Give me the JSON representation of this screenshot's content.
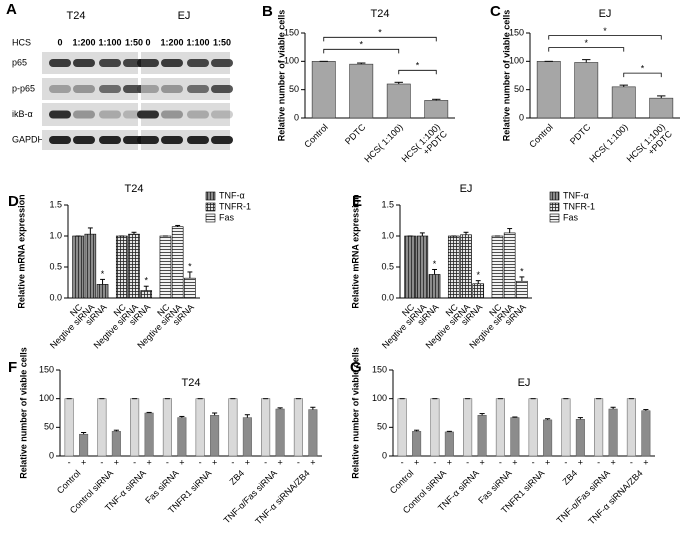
{
  "blot": {
    "label": "A",
    "cell_lines": [
      "T24",
      "EJ"
    ],
    "treatment": "HCS",
    "doses": [
      "0",
      "1:200",
      "1:100",
      "1:50"
    ],
    "proteins": [
      "p65",
      "p-p65",
      "ikB-α",
      "GAPDH"
    ]
  },
  "chart_data": [
    {
      "type": "bar",
      "label": "B",
      "title": "T24",
      "ylabel": "Relative number of viable cells",
      "categories": [
        "Control",
        "PDTC",
        "HCS( 1:100)",
        "HCS( 1:100)\n+PDTC"
      ],
      "values": [
        100,
        95,
        60,
        31
      ],
      "errors": [
        0,
        2,
        3,
        2
      ],
      "color": "#a6a6a6",
      "ylim": [
        0,
        150
      ],
      "yticks": [
        0,
        50,
        100,
        150
      ],
      "annotations": [
        {
          "text": "*",
          "from": "HCS( 1:100)",
          "to": "HCS( 1:100)\n+PDTC"
        },
        {
          "text": "*",
          "from": "Control",
          "to": "HCS( 1:100)"
        },
        {
          "text": "*",
          "from": "Control",
          "to": "HCS( 1:100)\n+PDTC"
        }
      ]
    },
    {
      "type": "bar",
      "label": "C",
      "title": "EJ",
      "ylabel": "Relative number of viable cells",
      "categories": [
        "Control",
        "PDTC",
        "HCS( 1:100)",
        "HCS( 1:100)\n+PDTC"
      ],
      "values": [
        100,
        98,
        55,
        35
      ],
      "errors": [
        0,
        5,
        3,
        4
      ],
      "color": "#a6a6a6",
      "ylim": [
        0,
        150
      ],
      "yticks": [
        0,
        50,
        100,
        150
      ],
      "annotations": [
        {
          "text": "*",
          "from": "HCS( 1:100)",
          "to": "HCS( 1:100)\n+PDTC"
        },
        {
          "text": "*",
          "from": "Control",
          "to": "HCS( 1:100)"
        },
        {
          "text": "*",
          "from": "Control",
          "to": "HCS( 1:100)\n+PDTC"
        }
      ]
    },
    {
      "type": "grouped_bar",
      "label": "D",
      "title": "T24",
      "ylabel": "Relative mRNA expression",
      "categories": [
        "NC",
        "Negtive siRNA",
        "siRNA",
        "NC",
        "Negtive siRNA",
        "siRNA",
        "NC",
        "Negtive siRNA",
        "siRNA"
      ],
      "series": [
        {
          "name": "TNF-α",
          "color": "#8c8c8c",
          "pattern": "vertical",
          "values": [
            1.0,
            1.03,
            0.22,
            null,
            null,
            null,
            null,
            null,
            null
          ],
          "errors": [
            0,
            0.1,
            0.08,
            null,
            null,
            null,
            null,
            null,
            null
          ]
        },
        {
          "name": "TNFR-1",
          "color": "#e6e6e6",
          "pattern": "cross",
          "values": [
            null,
            null,
            null,
            1.0,
            1.03,
            0.12,
            null,
            null,
            null
          ],
          "errors": [
            null,
            null,
            null,
            0,
            0.03,
            0.07,
            null,
            null,
            null
          ]
        },
        {
          "name": "Fas",
          "color": "#f2f2f2",
          "pattern": "horizontal",
          "values": [
            null,
            null,
            null,
            null,
            null,
            null,
            1.0,
            1.15,
            0.32
          ],
          "errors": [
            null,
            null,
            null,
            null,
            null,
            null,
            0,
            0.02,
            0.1
          ]
        }
      ],
      "ylim": [
        0,
        1.5
      ],
      "yticks": [
        {
          "value": 0,
          "label": "0.0"
        },
        0.5,
        {
          "value": 1,
          "label": "1.0"
        },
        1.5
      ],
      "legend": "upper right",
      "annotations": [
        {
          "text": "*",
          "series": "TNF-α",
          "at": "siRNA"
        },
        {
          "text": "*",
          "series": "TNFR-1",
          "at": "siRNA"
        },
        {
          "text": "*",
          "series": "Fas",
          "at": "siRNA"
        }
      ]
    },
    {
      "type": "grouped_bar",
      "label": "E",
      "title": "EJ",
      "ylabel": "Relative mRNA expression",
      "categories": [
        "NC",
        "Negtive siRNA",
        "siRNA",
        "NC",
        "Negtive siRNA",
        "siRNA",
        "NC",
        "Negtive siRNA",
        "siRNA"
      ],
      "series": [
        {
          "name": "TNF-α",
          "color": "#8c8c8c",
          "pattern": "vertical",
          "values": [
            1.0,
            1.0,
            0.38,
            null,
            null,
            null,
            null,
            null,
            null
          ],
          "errors": [
            0,
            0.05,
            0.08,
            null,
            null,
            null,
            null,
            null,
            null
          ]
        },
        {
          "name": "TNFR-1",
          "color": "#e6e6e6",
          "pattern": "cross",
          "values": [
            null,
            null,
            null,
            1.0,
            1.02,
            0.23,
            null,
            null,
            null
          ],
          "errors": [
            null,
            null,
            null,
            0,
            0.04,
            0.05,
            null,
            null,
            null
          ]
        },
        {
          "name": "Fas",
          "color": "#f2f2f2",
          "pattern": "horizontal",
          "values": [
            null,
            null,
            null,
            null,
            null,
            null,
            1.0,
            1.05,
            0.27
          ],
          "errors": [
            null,
            null,
            null,
            null,
            null,
            null,
            0,
            0.07,
            0.07
          ]
        }
      ],
      "ylim": [
        0,
        1.5
      ],
      "yticks": [
        {
          "value": 0,
          "label": "0.0"
        },
        0.5,
        {
          "value": 1,
          "label": "1.0"
        },
        1.5
      ],
      "legend": "upper right",
      "annotations": [
        {
          "text": "*",
          "series": "TNF-α",
          "at": "siRNA"
        },
        {
          "text": "*",
          "series": "TNFR-1",
          "at": "siRNA"
        },
        {
          "text": "*",
          "series": "Fas",
          "at": "siRNA"
        }
      ]
    },
    {
      "type": "paired_bar",
      "label": "F",
      "title": "T24",
      "ylabel": "Relative number of viable cells",
      "categories": [
        "Control",
        "Control siRNA",
        "TNF-α siRNA",
        "Fas siRNA",
        "TNFR1 siRNA",
        "ZB4",
        "TNF-α/Fas siRNA",
        "TNF-α siRNA/ZB4"
      ],
      "series": [
        {
          "name": "-",
          "color": "#d9d9d9",
          "values": [
            100,
            100,
            100,
            100,
            100,
            100,
            100,
            100
          ],
          "errors": [
            0,
            0,
            0,
            0,
            0,
            0,
            0,
            0
          ]
        },
        {
          "name": "+",
          "color": "#8c8c8c",
          "values": [
            38,
            43,
            75,
            67,
            71,
            67,
            82,
            81
          ],
          "errors": [
            3,
            2,
            1,
            2,
            4,
            5,
            2,
            4
          ]
        }
      ],
      "ylim": [
        0,
        150
      ],
      "yticks": [
        0,
        50,
        100,
        150
      ]
    },
    {
      "type": "paired_bar",
      "label": "G",
      "title": "EJ",
      "ylabel": "Relative number of viable cells",
      "categories": [
        "Control",
        "Control siRNA",
        "TNF-α siRNA",
        "Fas siRNA",
        "TNFR1 siRNA",
        "ZB4",
        "TNF-α/Fas siRNA",
        "TNF-α siRNA/ZB4"
      ],
      "series": [
        {
          "name": "-",
          "color": "#d9d9d9",
          "values": [
            100,
            100,
            100,
            100,
            100,
            100,
            100,
            100
          ],
          "errors": [
            0,
            0,
            0,
            0,
            0,
            0,
            0,
            0
          ]
        },
        {
          "name": "+",
          "color": "#8c8c8c",
          "values": [
            43,
            42,
            71,
            67,
            63,
            64,
            82,
            79
          ],
          "errors": [
            2,
            1,
            3,
            1,
            2,
            3,
            3,
            2
          ]
        }
      ],
      "ylim": [
        0,
        150
      ],
      "yticks": [
        0,
        50,
        100,
        150
      ]
    }
  ]
}
